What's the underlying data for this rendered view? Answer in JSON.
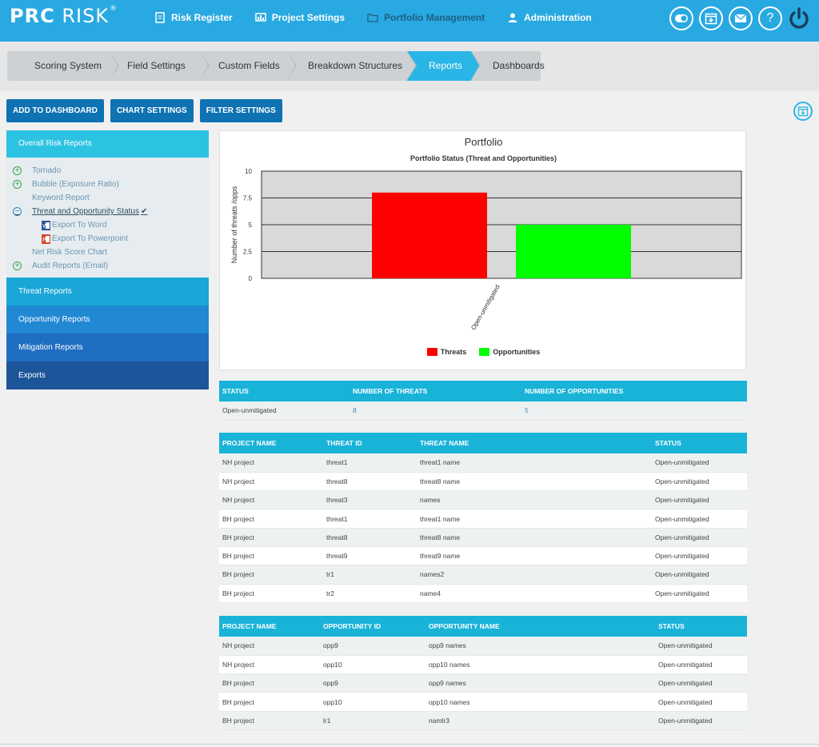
{
  "app": {
    "logo_bold": "PRC",
    "logo_thin": "RISK",
    "logo_mark": "®"
  },
  "topnav": [
    {
      "label": "Risk Register",
      "icon": "list-icon"
    },
    {
      "label": "Project Settings",
      "icon": "chart-settings-icon"
    },
    {
      "label": "Portfolio Management",
      "icon": "folder-icon",
      "active": true
    },
    {
      "label": "Administration",
      "icon": "user-icon"
    }
  ],
  "topicons": [
    "toggle-icon",
    "calendar-download-icon",
    "mail-icon",
    "help-icon",
    "power-icon"
  ],
  "help_glyph": "?",
  "steps": [
    {
      "label": "Scoring System"
    },
    {
      "label": "Field Settings"
    },
    {
      "label": "Custom Fields"
    },
    {
      "label": "Breakdown Structures"
    },
    {
      "label": "Reports",
      "active": true
    },
    {
      "label": "Dashboards"
    }
  ],
  "actions": {
    "add": "ADD TO DASHBOARD",
    "chart": "CHART SETTINGS",
    "filter": "FILTER SETTINGS"
  },
  "sidebar": {
    "head": "Overall Risk Reports",
    "items": {
      "tornado": "Tornado",
      "bubble": "Bubble (Exposure Ratio)",
      "keyword": "Keyword Report",
      "threat_opp": "Threat and Opportunity Status",
      "export_word": "Export To Word",
      "export_ppt": "Export To Powerpoint",
      "net_risk": "Net Risk Score Chart",
      "audit": "Audit Reports (Email)"
    },
    "plus": "+",
    "minus": "−",
    "check": "✔",
    "categories": {
      "threat": "Threat Reports",
      "opportunity": "Opportunity Reports",
      "mitigation": "Mitigation Reports",
      "exports": "Exports"
    },
    "category_colors": [
      "#1aa6d6",
      "#2188d4",
      "#1f6ec2",
      "#1d559a"
    ]
  },
  "chart_data": {
    "type": "bar",
    "title": "Portfolio",
    "subtitle": "Portfolio Status (Threat and Opportunities)",
    "ylabel": "Number of threats /opps",
    "xlabel": "",
    "categories": [
      "Open-unmitigated"
    ],
    "ylim": [
      0,
      10
    ],
    "yticks": [
      "0",
      "2.5",
      "5",
      "7.5",
      "10"
    ],
    "series": [
      {
        "name": "Threats",
        "values": [
          8
        ],
        "color": "#ff0000"
      },
      {
        "name": "Opportunities",
        "values": [
          5
        ],
        "color": "#00ff00"
      }
    ],
    "grid": true,
    "legend": "bottom"
  },
  "summary_table": {
    "headers": [
      "STATUS",
      "NUMBER OF THREATS",
      "NUMBER OF OPPORTUNITIES"
    ],
    "rows": [
      [
        "Open-unmitigated",
        "8",
        "5"
      ]
    ]
  },
  "threat_table": {
    "headers": [
      "PROJECT NAME",
      "THREAT ID",
      "THREAT NAME",
      "STATUS"
    ],
    "rows": [
      [
        "NH project",
        "threat1",
        "threat1 name",
        "Open-unmitigated"
      ],
      [
        "NH project",
        "threat8",
        "threat8 name",
        "Open-unmitigated"
      ],
      [
        "NH project",
        "threat3",
        "names",
        "Open-unmitigated"
      ],
      [
        "BH project",
        "threat1",
        "threat1 name",
        "Open-unmitigated"
      ],
      [
        "BH project",
        "threat8",
        "threat8 name",
        "Open-unmitigated"
      ],
      [
        "BH project",
        "threat9",
        "threat9 name",
        "Open-unmitigated"
      ],
      [
        "BH project",
        "tr1",
        "names2",
        "Open-unmitigated"
      ],
      [
        "BH project",
        "tr2",
        "name4",
        "Open-unmitigated"
      ]
    ]
  },
  "opp_table": {
    "headers": [
      "PROJECT NAME",
      "OPPORTUNITY ID",
      "OPPORTUNITY NAME",
      "STATUS"
    ],
    "rows": [
      [
        "NH project",
        "opp9",
        "opp9 names",
        "Open-unmitigated"
      ],
      [
        "NH project",
        "opp10",
        "opp10 names",
        "Open-unmitigated"
      ],
      [
        "BH project",
        "opp9",
        "opp9 names",
        "Open-unmitigated"
      ],
      [
        "BH project",
        "opp10",
        "opp10 names",
        "Open-unmitigated"
      ],
      [
        "BH project",
        "lr1",
        "namlr3",
        "Open-unmitigated"
      ]
    ]
  }
}
